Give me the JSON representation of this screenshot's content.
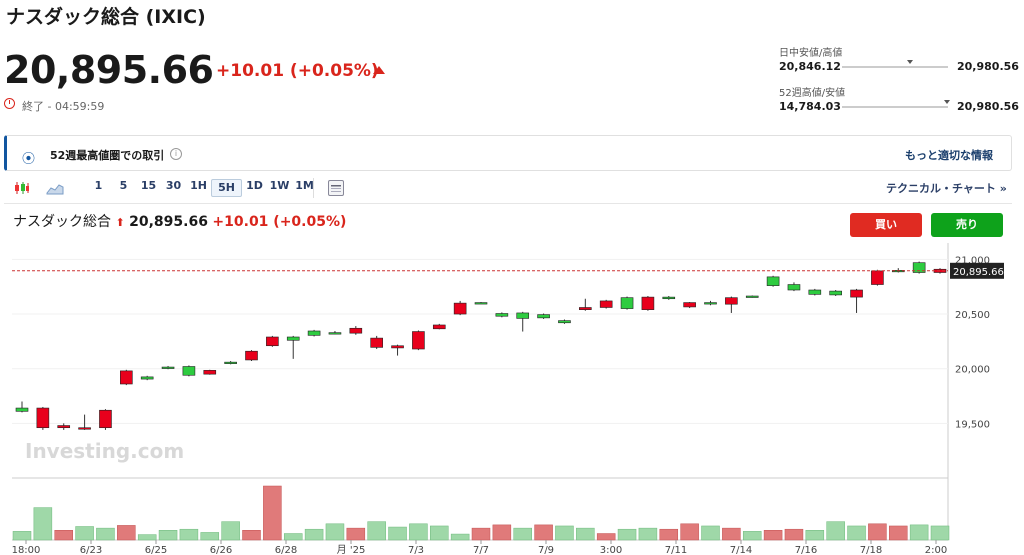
{
  "header": {
    "title": "ナスダック総合 (IXIC)",
    "price": "20,895.66",
    "change": "+10.01 (+0.05%)",
    "status": "終了 - 04:59:59"
  },
  "ranges": {
    "day_label": "日中安値/高値",
    "day_low": "20,846.12",
    "day_high": "20,980.56",
    "day_position": 0.64,
    "week52_label": "52週高値/安値",
    "week52_low": "14,784.03",
    "week52_high": "20,980.56",
    "week52_position": 0.99
  },
  "banner": {
    "text": "52週最高値圏での取引",
    "info_icon": "i",
    "link": "もっと適切な情報"
  },
  "toolbar": {
    "timeframes": [
      "1",
      "5",
      "15",
      "30",
      "1H",
      "5H",
      "1D",
      "1W",
      "1M"
    ],
    "active": "5H",
    "technical_link": "テクニカル・チャート »"
  },
  "chart_header": {
    "name": "ナスダック総合",
    "price": "20,895.66",
    "change": "+10.01 (+0.05%)"
  },
  "trade": {
    "buy": "買い",
    "sell": "売り"
  },
  "colors": {
    "up": "#2ecc40",
    "down": "#e8001c",
    "accent": "#d9251c",
    "sell": "#0ea21b",
    "buy": "#e02b22"
  },
  "chart_data": {
    "type": "candlestick",
    "x_tick_labels": [
      "18:00",
      "6/23",
      "6/25",
      "6/26",
      "6/28",
      "月 '25",
      "7/3",
      "7/7",
      "7/9",
      "3:00",
      "7/11",
      "7/14",
      "7/16",
      "7/18",
      "2:00"
    ],
    "y_tick_labels": [
      "21,000",
      "20,500",
      "20,000",
      "19,500"
    ],
    "ylim": [
      19000,
      21150
    ],
    "last_price_label": "20,895.66",
    "watermark": "Investing.com",
    "candles": [
      {
        "o": 19610,
        "c": 19640,
        "h": 19700,
        "l": 19600
      },
      {
        "o": 19640,
        "c": 19460,
        "h": 19650,
        "l": 19440
      },
      {
        "o": 19480,
        "c": 19460,
        "h": 19500,
        "l": 19440
      },
      {
        "o": 19460,
        "c": 19455,
        "h": 19580,
        "l": 19440
      },
      {
        "o": 19620,
        "c": 19460,
        "h": 19630,
        "l": 19440
      },
      {
        "o": 19980,
        "c": 19860,
        "h": 19990,
        "l": 19850
      },
      {
        "o": 19905,
        "c": 19925,
        "h": 19935,
        "l": 19895
      },
      {
        "o": 20005,
        "c": 20015,
        "h": 20025,
        "l": 19995
      },
      {
        "o": 19940,
        "c": 20020,
        "h": 20030,
        "l": 19930
      },
      {
        "o": 19985,
        "c": 19950,
        "h": 19990,
        "l": 19945
      },
      {
        "o": 20050,
        "c": 20060,
        "h": 20070,
        "l": 20040
      },
      {
        "o": 20160,
        "c": 20080,
        "h": 20170,
        "l": 20070
      },
      {
        "o": 20290,
        "c": 20210,
        "h": 20300,
        "l": 20200
      },
      {
        "o": 20260,
        "c": 20290,
        "h": 20300,
        "l": 20090
      },
      {
        "o": 20305,
        "c": 20345,
        "h": 20355,
        "l": 20295
      },
      {
        "o": 20325,
        "c": 20330,
        "h": 20345,
        "l": 20315
      },
      {
        "o": 20370,
        "c": 20325,
        "h": 20390,
        "l": 20310
      },
      {
        "o": 20280,
        "c": 20195,
        "h": 20300,
        "l": 20180
      },
      {
        "o": 20210,
        "c": 20190,
        "h": 20220,
        "l": 20120
      },
      {
        "o": 20340,
        "c": 20180,
        "h": 20350,
        "l": 20170
      },
      {
        "o": 20400,
        "c": 20365,
        "h": 20410,
        "l": 20360
      },
      {
        "o": 20600,
        "c": 20500,
        "h": 20620,
        "l": 20490
      },
      {
        "o": 20600,
        "c": 20605,
        "h": 20610,
        "l": 20595
      },
      {
        "o": 20480,
        "c": 20505,
        "h": 20515,
        "l": 20470
      },
      {
        "o": 20460,
        "c": 20510,
        "h": 20520,
        "l": 20340
      },
      {
        "o": 20465,
        "c": 20495,
        "h": 20505,
        "l": 20455
      },
      {
        "o": 20420,
        "c": 20440,
        "h": 20450,
        "l": 20410
      },
      {
        "o": 20560,
        "c": 20540,
        "h": 20640,
        "l": 20530
      },
      {
        "o": 20620,
        "c": 20560,
        "h": 20630,
        "l": 20550
      },
      {
        "o": 20550,
        "c": 20650,
        "h": 20660,
        "l": 20540
      },
      {
        "o": 20655,
        "c": 20540,
        "h": 20665,
        "l": 20530
      },
      {
        "o": 20640,
        "c": 20655,
        "h": 20665,
        "l": 20630
      },
      {
        "o": 20605,
        "c": 20565,
        "h": 20610,
        "l": 20555
      },
      {
        "o": 20595,
        "c": 20605,
        "h": 20620,
        "l": 20580
      },
      {
        "o": 20650,
        "c": 20590,
        "h": 20660,
        "l": 20510
      },
      {
        "o": 20655,
        "c": 20665,
        "h": 20670,
        "l": 20650
      },
      {
        "o": 20760,
        "c": 20840,
        "h": 20850,
        "l": 20750
      },
      {
        "o": 20720,
        "c": 20770,
        "h": 20790,
        "l": 20710
      },
      {
        "o": 20680,
        "c": 20720,
        "h": 20730,
        "l": 20670
      },
      {
        "o": 20675,
        "c": 20710,
        "h": 20720,
        "l": 20665
      },
      {
        "o": 20720,
        "c": 20655,
        "h": 20730,
        "l": 20510
      },
      {
        "o": 20895,
        "c": 20770,
        "h": 20905,
        "l": 20760
      },
      {
        "o": 20890,
        "c": 20900,
        "h": 20920,
        "l": 20880
      },
      {
        "o": 20880,
        "c": 20970,
        "h": 20980,
        "l": 20870
      },
      {
        "o": 20910,
        "c": 20880,
        "h": 20920,
        "l": 20870
      }
    ],
    "volumes": [
      {
        "v": 0.16,
        "up": true
      },
      {
        "v": 0.6,
        "up": true
      },
      {
        "v": 0.18,
        "up": false
      },
      {
        "v": 0.25,
        "up": true
      },
      {
        "v": 0.22,
        "up": true
      },
      {
        "v": 0.27,
        "up": false
      },
      {
        "v": 0.1,
        "up": true
      },
      {
        "v": 0.18,
        "up": true
      },
      {
        "v": 0.2,
        "up": true
      },
      {
        "v": 0.14,
        "up": true
      },
      {
        "v": 0.34,
        "up": true
      },
      {
        "v": 0.18,
        "up": false
      },
      {
        "v": 1.0,
        "up": false
      },
      {
        "v": 0.12,
        "up": true
      },
      {
        "v": 0.2,
        "up": true
      },
      {
        "v": 0.3,
        "up": true
      },
      {
        "v": 0.22,
        "up": false
      },
      {
        "v": 0.34,
        "up": true
      },
      {
        "v": 0.24,
        "up": true
      },
      {
        "v": 0.3,
        "up": true
      },
      {
        "v": 0.26,
        "up": true
      },
      {
        "v": 0.11,
        "up": true
      },
      {
        "v": 0.22,
        "up": false
      },
      {
        "v": 0.28,
        "up": false
      },
      {
        "v": 0.22,
        "up": true
      },
      {
        "v": 0.28,
        "up": false
      },
      {
        "v": 0.26,
        "up": true
      },
      {
        "v": 0.22,
        "up": true
      },
      {
        "v": 0.12,
        "up": false
      },
      {
        "v": 0.2,
        "up": true
      },
      {
        "v": 0.22,
        "up": true
      },
      {
        "v": 0.2,
        "up": false
      },
      {
        "v": 0.3,
        "up": false
      },
      {
        "v": 0.26,
        "up": true
      },
      {
        "v": 0.22,
        "up": false
      },
      {
        "v": 0.16,
        "up": true
      },
      {
        "v": 0.18,
        "up": false
      },
      {
        "v": 0.2,
        "up": false
      },
      {
        "v": 0.18,
        "up": true
      },
      {
        "v": 0.34,
        "up": true
      },
      {
        "v": 0.26,
        "up": true
      },
      {
        "v": 0.3,
        "up": false
      },
      {
        "v": 0.26,
        "up": false
      },
      {
        "v": 0.28,
        "up": true
      },
      {
        "v": 0.26,
        "up": true
      }
    ]
  }
}
